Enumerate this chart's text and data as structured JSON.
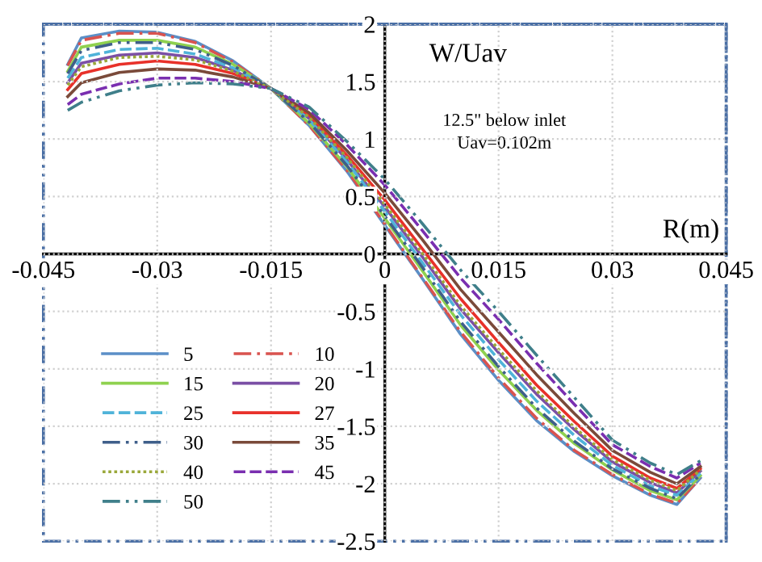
{
  "chart_data": {
    "type": "line",
    "xlabel": "R(m)",
    "ylabel": "W/Uav",
    "annotations": [
      "12.5\" below inlet\nUav=0.102m"
    ],
    "x": [
      -0.0418,
      -0.04,
      -0.035,
      -0.03,
      -0.025,
      -0.02,
      -0.015,
      -0.01,
      -0.005,
      0,
      0.005,
      0.01,
      0.015,
      0.02,
      0.025,
      0.03,
      0.035,
      0.0385,
      0.0416
    ],
    "series": [
      {
        "name": "5",
        "color": "#5b8fc7",
        "line_style": "solid",
        "values": [
          1.65,
          1.88,
          1.94,
          1.93,
          1.85,
          1.68,
          1.44,
          1.12,
          0.72,
          0.25,
          -0.22,
          -0.7,
          -1.1,
          -1.45,
          -1.72,
          -1.93,
          -2.1,
          -2.18,
          -1.95
        ]
      },
      {
        "name": "10",
        "color": "#d9534f",
        "line_style": "dashdot",
        "values": [
          1.64,
          1.86,
          1.92,
          1.92,
          1.84,
          1.67,
          1.44,
          1.12,
          0.73,
          0.26,
          -0.21,
          -0.68,
          -1.08,
          -1.43,
          -1.71,
          -1.92,
          -2.09,
          -2.17,
          -1.95
        ]
      },
      {
        "name": "15",
        "color": "#8fd14f",
        "line_style": "solid",
        "values": [
          1.59,
          1.8,
          1.86,
          1.86,
          1.8,
          1.65,
          1.44,
          1.14,
          0.76,
          0.31,
          -0.15,
          -0.62,
          -1.01,
          -1.36,
          -1.65,
          -1.88,
          -2.06,
          -2.14,
          -1.93
        ]
      },
      {
        "name": "20",
        "color": "#7b4fa5",
        "line_style": "solid",
        "values": [
          1.49,
          1.66,
          1.73,
          1.75,
          1.71,
          1.6,
          1.44,
          1.18,
          0.82,
          0.41,
          -0.03,
          -0.48,
          -0.86,
          -1.22,
          -1.53,
          -1.81,
          -1.99,
          -2.08,
          -1.89
        ]
      },
      {
        "name": "25",
        "color": "#4fb3d9",
        "line_style": "dashed",
        "values": [
          1.53,
          1.71,
          1.78,
          1.79,
          1.74,
          1.62,
          1.44,
          1.17,
          0.8,
          0.37,
          -0.08,
          -0.53,
          -0.92,
          -1.28,
          -1.58,
          -1.84,
          -2.02,
          -2.1,
          -1.91
        ]
      },
      {
        "name": "27",
        "color": "#e8312a",
        "line_style": "solid",
        "values": [
          1.43,
          1.57,
          1.65,
          1.68,
          1.65,
          1.57,
          1.44,
          1.21,
          0.86,
          0.47,
          0.04,
          -0.39,
          -0.77,
          -1.14,
          -1.46,
          -1.76,
          -1.95,
          -2.04,
          -1.87
        ]
      },
      {
        "name": "30",
        "color": "#3f5f8a",
        "line_style": "dashdotdot",
        "values": [
          1.57,
          1.77,
          1.84,
          1.84,
          1.78,
          1.64,
          1.44,
          1.15,
          0.77,
          0.33,
          -0.12,
          -0.59,
          -0.98,
          -1.34,
          -1.63,
          -1.87,
          -2.04,
          -2.13,
          -1.92
        ]
      },
      {
        "name": "35",
        "color": "#7a4a3a",
        "line_style": "solid",
        "values": [
          1.37,
          1.49,
          1.58,
          1.61,
          1.6,
          1.54,
          1.44,
          1.23,
          0.9,
          0.53,
          0.12,
          -0.31,
          -0.68,
          -1.05,
          -1.39,
          -1.71,
          -1.9,
          -2.0,
          -1.85
        ]
      },
      {
        "name": "40",
        "color": "#9aa83a",
        "line_style": "dotted",
        "values": [
          1.47,
          1.63,
          1.71,
          1.72,
          1.69,
          1.59,
          1.44,
          1.19,
          0.84,
          0.43,
          0.0,
          -0.45,
          -0.83,
          -1.19,
          -1.51,
          -1.79,
          -1.97,
          -2.06,
          -1.88
        ]
      },
      {
        "name": "45",
        "color": "#7a2fb0",
        "line_style": "dashed",
        "values": [
          1.3,
          1.39,
          1.48,
          1.53,
          1.53,
          1.5,
          1.44,
          1.26,
          0.95,
          0.6,
          0.2,
          -0.21,
          -0.57,
          -0.95,
          -1.31,
          -1.66,
          -1.85,
          -1.95,
          -1.82
        ]
      },
      {
        "name": "50",
        "color": "#3f7f8a",
        "line_style": "dashdotdot",
        "values": [
          1.25,
          1.32,
          1.42,
          1.47,
          1.49,
          1.48,
          1.44,
          1.28,
          0.98,
          0.65,
          0.26,
          -0.14,
          -0.5,
          -0.88,
          -1.25,
          -1.62,
          -1.82,
          -1.92,
          -1.8
        ]
      }
    ],
    "xlim": [
      -0.045,
      0.045
    ],
    "ylim": [
      -2.5,
      2
    ],
    "xticks": [
      -0.045,
      -0.03,
      -0.015,
      0,
      0.015,
      0.03,
      0.045
    ],
    "yticks": [
      -2.5,
      -2,
      -1.5,
      -1,
      -0.5,
      0,
      0.5,
      1,
      1.5,
      2
    ],
    "grid": true,
    "legend": "lower left"
  }
}
